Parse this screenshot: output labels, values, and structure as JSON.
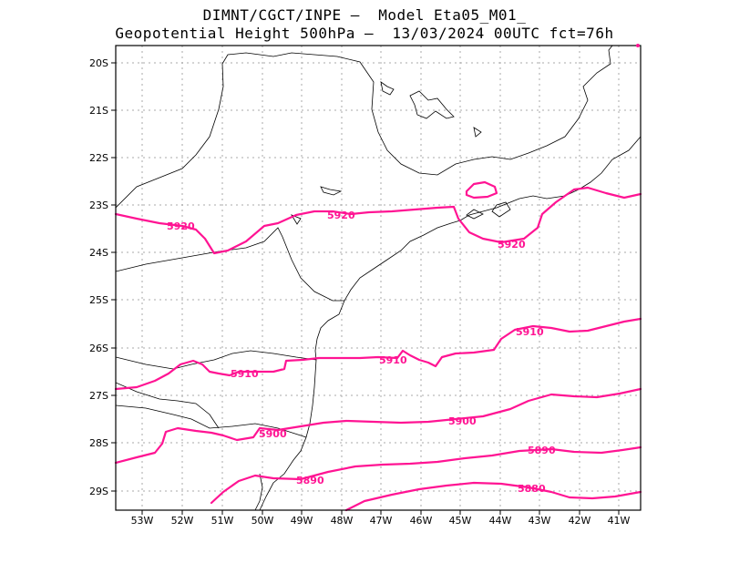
{
  "header": {
    "line1": "DIMNT/CGCT/INPE –  Model Eta05_M01_",
    "line2": "Geopotential Height 500hPa –  13/03/2024 00UTC fct=76h"
  },
  "axes": {
    "lon_labels": [
      "53W",
      "52W",
      "51W",
      "50W",
      "49W",
      "48W",
      "47W",
      "46W",
      "45W",
      "44W",
      "43W",
      "42W",
      "41W"
    ],
    "lat_labels": [
      "20S",
      "21S",
      "22S",
      "23S",
      "24S",
      "25S",
      "26S",
      "27S",
      "28S",
      "29S"
    ]
  },
  "contour_color": "#ff1493",
  "contours": [
    {
      "value": "5920",
      "label_text": "5920"
    },
    {
      "value": "5910",
      "label_text": "5910"
    },
    {
      "value": "5900",
      "label_text": "5900"
    },
    {
      "value": "5890",
      "label_text": "5890"
    },
    {
      "value": "5880",
      "label_text": "5880"
    }
  ],
  "labels": [
    {
      "text": "5920"
    },
    {
      "text": "5920"
    },
    {
      "text": "5920"
    },
    {
      "text": "5910"
    },
    {
      "text": "5910"
    },
    {
      "text": "5910"
    },
    {
      "text": "5900"
    },
    {
      "text": "5900"
    },
    {
      "text": "5890"
    },
    {
      "text": "5890"
    },
    {
      "text": "5880"
    }
  ]
}
